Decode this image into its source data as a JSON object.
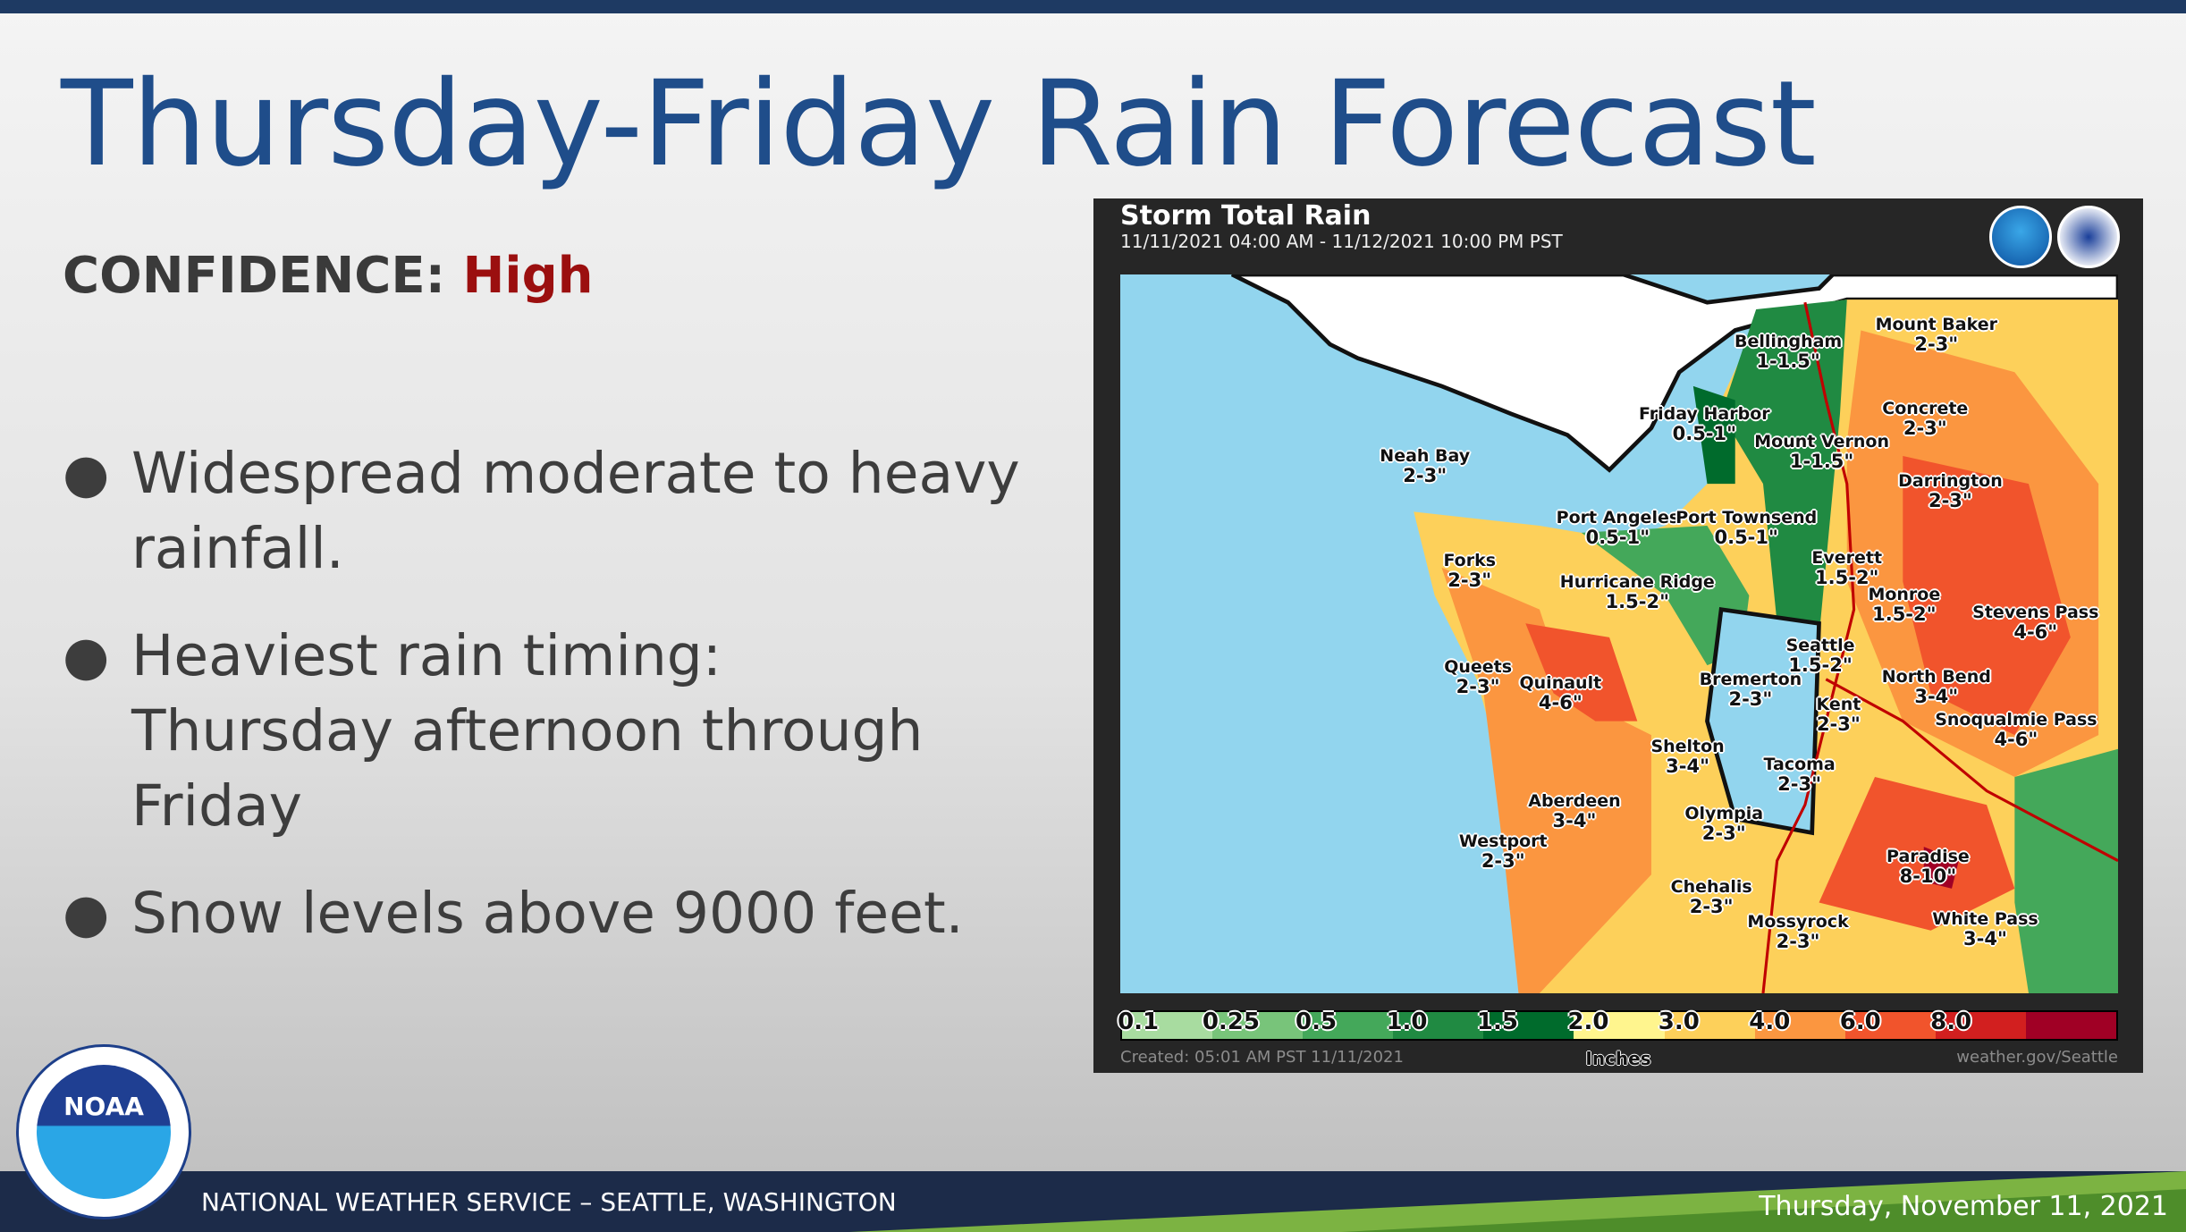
{
  "slide": {
    "title": "Thursday-Friday Rain Forecast",
    "confidence_label": "CONFIDENCE:",
    "confidence_value": "High",
    "bullets": [
      "Widespread moderate to heavy rainfall.",
      "Heaviest rain timing: Thursday afternoon through Friday",
      "Snow levels above 9000 feet."
    ]
  },
  "map_panel": {
    "title": "Storm Total Rain",
    "period": "11/11/2021 04:00 AM - 11/12/2021 10:00 PM PST",
    "logos": [
      "NOAA",
      "National Weather Service"
    ],
    "labels": [
      {
        "name": "Bellingham",
        "value": "1-1.5\""
      },
      {
        "name": "Mount Baker",
        "value": "2-3\""
      },
      {
        "name": "Friday Harbor",
        "value": "0.5-1\""
      },
      {
        "name": "Mount Vernon",
        "value": "1-1.5\""
      },
      {
        "name": "Concrete",
        "value": "2-3\""
      },
      {
        "name": "Neah Bay",
        "value": "2-3\""
      },
      {
        "name": "Darrington",
        "value": "2-3\""
      },
      {
        "name": "Port Angeles",
        "value": "0.5-1\""
      },
      {
        "name": "Port Townsend",
        "value": "0.5-1\""
      },
      {
        "name": "Forks",
        "value": "2-3\""
      },
      {
        "name": "Everett",
        "value": "1.5-2\""
      },
      {
        "name": "Hurricane Ridge",
        "value": "1.5-2\""
      },
      {
        "name": "Monroe",
        "value": "1.5-2\""
      },
      {
        "name": "Stevens Pass",
        "value": "4-6\""
      },
      {
        "name": "Seattle",
        "value": "1.5-2\""
      },
      {
        "name": "Queets",
        "value": "2-3\""
      },
      {
        "name": "Quinault",
        "value": "4-6\""
      },
      {
        "name": "Bremerton",
        "value": "2-3\""
      },
      {
        "name": "North Bend",
        "value": "3-4\""
      },
      {
        "name": "Kent",
        "value": "2-3\""
      },
      {
        "name": "Snoqualmie Pass",
        "value": "4-6\""
      },
      {
        "name": "Shelton",
        "value": "3-4\""
      },
      {
        "name": "Tacoma",
        "value": "2-3\""
      },
      {
        "name": "Aberdeen",
        "value": "3-4\""
      },
      {
        "name": "Olympia",
        "value": "2-3\""
      },
      {
        "name": "Westport",
        "value": "2-3\""
      },
      {
        "name": "Paradise",
        "value": "8-10\""
      },
      {
        "name": "Chehalis",
        "value": "2-3\""
      },
      {
        "name": "Mossyrock",
        "value": "2-3\""
      },
      {
        "name": "White Pass",
        "value": "3-4\""
      }
    ],
    "legend": {
      "ticks": [
        "0.1",
        "0.25",
        "0.5",
        "1.0",
        "1.5",
        "2.0",
        "3.0",
        "4.0",
        "6.0",
        "8.0"
      ],
      "colors": [
        "#a8dca0",
        "#78c47a",
        "#44a85a",
        "#208a42",
        "#006b2c",
        "#fff58e",
        "#fdd05a",
        "#fb9640",
        "#f1542c",
        "#d21f1f",
        "#a00025"
      ],
      "units": "Inches"
    },
    "created": "Created: 05:01 AM PST 11/11/2021",
    "credit": "weather.gov/Seattle"
  },
  "footer": {
    "logo_text": "NOAA",
    "organization": "NATIONAL WEATHER SERVICE – SEATTLE, WASHINGTON",
    "date": "Thursday, November 11, 2021"
  },
  "colors": {
    "title": "#1f4d8a",
    "confidence_high": "#9b0f0f",
    "footer_bg": "#1c2b49",
    "footer_accent": "#7cb342",
    "ocean": "#92d5ee"
  }
}
